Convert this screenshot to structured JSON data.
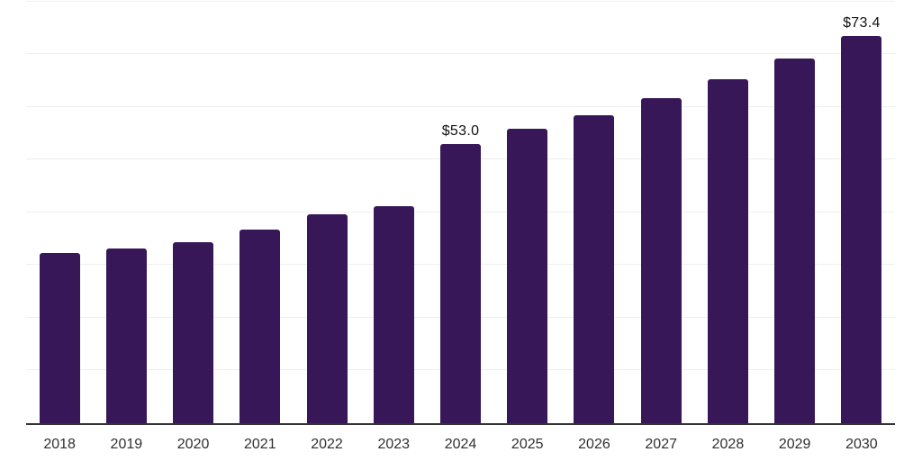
{
  "chart_data": {
    "type": "bar",
    "title": "",
    "xlabel": "",
    "ylabel": "",
    "categories": [
      "2018",
      "2019",
      "2020",
      "2021",
      "2022",
      "2023",
      "2024",
      "2025",
      "2026",
      "2027",
      "2028",
      "2029",
      "2030"
    ],
    "values": [
      32.2,
      33.2,
      34.3,
      36.8,
      39.6,
      41.1,
      53.0,
      55.8,
      58.4,
      61.6,
      65.2,
      69.2,
      73.4
    ],
    "data_labels": {
      "2024": "$53.0",
      "2030": "$73.4"
    },
    "ylim": [
      0,
      80
    ],
    "gridline_step": 10,
    "grid": "horizontal-only",
    "legend": "none",
    "y_axis_tick_labels": "none",
    "colors": {
      "bar": "#371758",
      "gridline": "#efefef",
      "axis_line": "#333333",
      "tick_label": "#303030",
      "data_label": "#111111",
      "background": "#ffffff"
    }
  }
}
